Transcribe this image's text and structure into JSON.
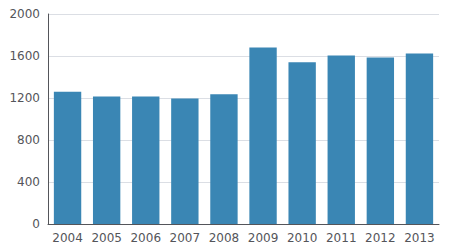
{
  "chart_data": {
    "type": "bar",
    "categories": [
      "2004",
      "2005",
      "2006",
      "2007",
      "2008",
      "2009",
      "2010",
      "2011",
      "2012",
      "2013"
    ],
    "values": [
      1260,
      1215,
      1215,
      1195,
      1235,
      1680,
      1540,
      1605,
      1585,
      1625
    ],
    "color": "#3a86b4",
    "ylim": [
      0,
      2000
    ],
    "yticks": [
      0,
      400,
      800,
      1200,
      1600,
      2000
    ],
    "grid": true
  }
}
